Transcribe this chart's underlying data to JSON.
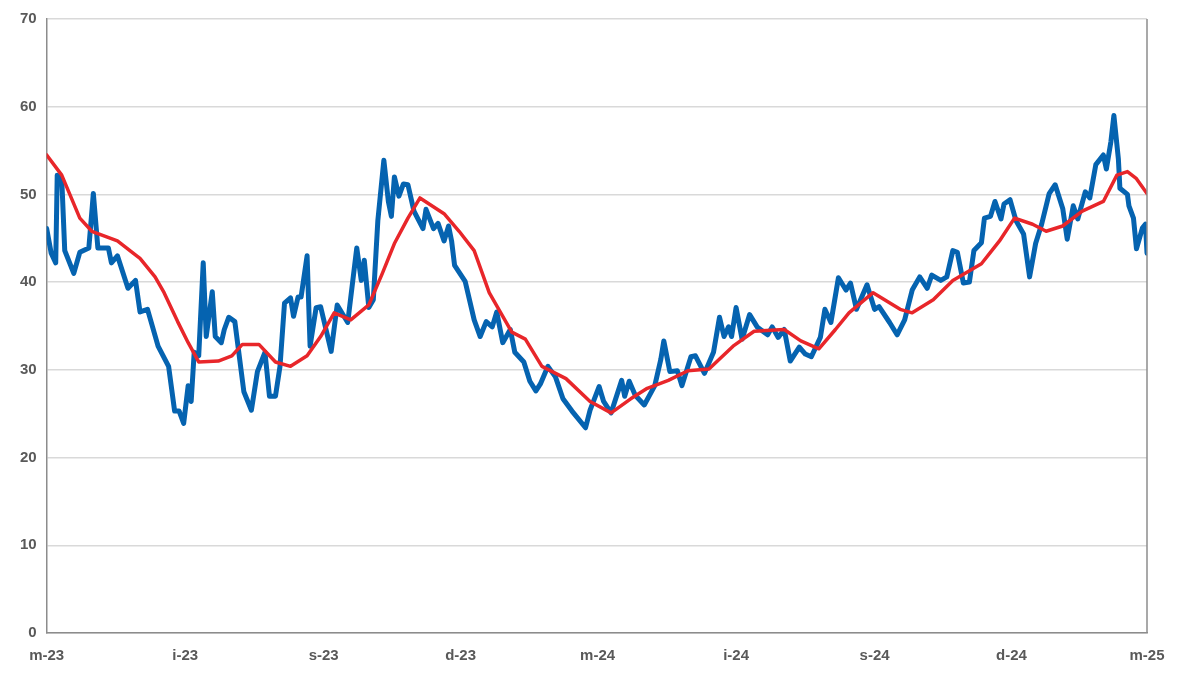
{
  "chart_data": {
    "type": "line",
    "xlim": [
      "2023-03-01",
      "2025-03-01"
    ],
    "xticks": [
      {
        "value": "2023-03-01",
        "label": "m-23"
      },
      {
        "value": "2023-06-01",
        "label": "i-23"
      },
      {
        "value": "2023-09-01",
        "label": "s-23"
      },
      {
        "value": "2023-12-01",
        "label": "d-23"
      },
      {
        "value": "2024-03-01",
        "label": "m-24"
      },
      {
        "value": "2024-06-01",
        "label": "i-24"
      },
      {
        "value": "2024-09-01",
        "label": "s-24"
      },
      {
        "value": "2024-12-01",
        "label": "d-24"
      },
      {
        "value": "2025-03-01",
        "label": "m-25"
      }
    ],
    "ylim": [
      0,
      70
    ],
    "yticks": [
      0,
      10,
      20,
      30,
      40,
      50,
      60,
      70
    ],
    "grid": "y",
    "marker": "none",
    "line_style": "solid",
    "series": [
      {
        "color": "#e8262a",
        "x": [
          "2023-03-01",
          "2023-03-11",
          "2023-03-23",
          "2023-03-31",
          "2023-04-17",
          "2023-05-02",
          "2023-05-12",
          "2023-05-18",
          "2023-05-27",
          "2023-06-03",
          "2023-06-10",
          "2023-06-23",
          "2023-07-02",
          "2023-07-09",
          "2023-07-20",
          "2023-07-31",
          "2023-08-10",
          "2023-08-21",
          "2023-08-30",
          "2023-09-08",
          "2023-09-19",
          "2023-10-01",
          "2023-10-10",
          "2023-10-18",
          "2023-10-27",
          "2023-11-04",
          "2023-11-20",
          "2023-11-30",
          "2023-12-10",
          "2023-12-20",
          "2024-01-04",
          "2024-01-13",
          "2024-01-24",
          "2024-02-09",
          "2024-02-25",
          "2024-03-10",
          "2024-03-23",
          "2024-04-03",
          "2024-04-17",
          "2024-04-30",
          "2024-05-14",
          "2024-05-30",
          "2024-06-13",
          "2024-07-03",
          "2024-07-14",
          "2024-07-26",
          "2024-08-06",
          "2024-08-15",
          "2024-08-31",
          "2024-09-18",
          "2024-09-26",
          "2024-10-10",
          "2024-10-23",
          "2024-11-11",
          "2024-11-23",
          "2024-12-03",
          "2024-12-15",
          "2024-12-24",
          "2025-01-04",
          "2025-01-17",
          "2025-01-31",
          "2025-02-09",
          "2025-02-16",
          "2025-02-22",
          "2025-03-01"
        ],
        "values": [
          54.5,
          52.2,
          47.3,
          45.8,
          44.7,
          42.7,
          40.6,
          38.8,
          35.5,
          33.1,
          30.9,
          31.0,
          31.6,
          32.9,
          32.9,
          30.9,
          30.4,
          31.6,
          33.8,
          36.5,
          35.7,
          37.4,
          41.0,
          44.4,
          47.3,
          49.6,
          47.8,
          45.8,
          43.6,
          38.8,
          34.3,
          33.5,
          30.4,
          29.0,
          26.4,
          25.1,
          26.7,
          27.9,
          28.8,
          29.9,
          30.1,
          32.7,
          34.4,
          34.6,
          33.3,
          32.4,
          34.6,
          36.5,
          38.8,
          36.9,
          36.5,
          38.0,
          40.2,
          42.1,
          44.7,
          47.3,
          46.6,
          45.8,
          46.4,
          48.1,
          49.2,
          52.2,
          52.6,
          51.8,
          50.1
        ]
      },
      {
        "color": "#0563b0",
        "x": [
          "2023-03-01",
          "2023-03-04",
          "2023-03-07",
          "2023-03-08",
          "2023-03-11",
          "2023-03-13",
          "2023-03-19",
          "2023-03-23",
          "2023-03-29",
          "2023-04-01",
          "2023-04-04",
          "2023-04-11",
          "2023-04-13",
          "2023-04-17",
          "2023-04-24",
          "2023-04-29",
          "2023-05-02",
          "2023-05-07",
          "2023-05-14",
          "2023-05-21",
          "2023-05-25",
          "2023-05-28",
          "2023-05-31",
          "2023-06-03",
          "2023-06-05",
          "2023-06-07",
          "2023-06-10",
          "2023-06-13",
          "2023-06-15",
          "2023-06-19",
          "2023-06-21",
          "2023-06-25",
          "2023-06-27",
          "2023-06-30",
          "2023-07-04",
          "2023-07-10",
          "2023-07-15",
          "2023-07-19",
          "2023-07-24",
          "2023-07-27",
          "2023-07-31",
          "2023-08-03",
          "2023-08-06",
          "2023-08-10",
          "2023-08-12",
          "2023-08-15",
          "2023-08-17",
          "2023-08-21",
          "2023-08-23",
          "2023-08-27",
          "2023-08-30",
          "2023-09-06",
          "2023-09-10",
          "2023-09-17",
          "2023-09-23",
          "2023-09-26",
          "2023-09-28",
          "2023-10-01",
          "2023-10-04",
          "2023-10-07",
          "2023-10-11",
          "2023-10-14",
          "2023-10-16",
          "2023-10-18",
          "2023-10-21",
          "2023-10-24",
          "2023-10-27",
          "2023-10-31",
          "2023-11-06",
          "2023-11-08",
          "2023-11-13",
          "2023-11-16",
          "2023-11-20",
          "2023-11-23",
          "2023-11-25",
          "2023-11-27",
          "2023-12-04",
          "2023-12-10",
          "2023-12-14",
          "2023-12-18",
          "2023-12-22",
          "2023-12-25",
          "2023-12-29",
          "2024-01-03",
          "2024-01-06",
          "2024-01-12",
          "2024-01-16",
          "2024-01-20",
          "2024-01-23",
          "2024-01-28",
          "2024-02-02",
          "2024-02-07",
          "2024-02-13",
          "2024-02-22",
          "2024-02-25",
          "2024-03-02",
          "2024-03-05",
          "2024-03-10",
          "2024-03-17",
          "2024-03-19",
          "2024-03-22",
          "2024-03-26",
          "2024-04-01",
          "2024-04-08",
          "2024-04-12",
          "2024-04-14",
          "2024-04-18",
          "2024-04-23",
          "2024-04-26",
          "2024-05-02",
          "2024-05-05",
          "2024-05-11",
          "2024-05-17",
          "2024-05-21",
          "2024-05-24",
          "2024-05-27",
          "2024-05-29",
          "2024-06-01",
          "2024-06-05",
          "2024-06-10",
          "2024-06-15",
          "2024-06-22",
          "2024-06-25",
          "2024-06-29",
          "2024-07-03",
          "2024-07-07",
          "2024-07-13",
          "2024-07-17",
          "2024-07-21",
          "2024-07-27",
          "2024-07-30",
          "2024-08-03",
          "2024-08-08",
          "2024-08-13",
          "2024-08-16",
          "2024-08-20",
          "2024-08-27",
          "2024-09-01",
          "2024-09-04",
          "2024-09-11",
          "2024-09-16",
          "2024-09-21",
          "2024-09-26",
          "2024-10-01",
          "2024-10-06",
          "2024-10-09",
          "2024-10-15",
          "2024-10-19",
          "2024-10-23",
          "2024-10-26",
          "2024-10-30",
          "2024-11-03",
          "2024-11-06",
          "2024-11-11",
          "2024-11-13",
          "2024-11-17",
          "2024-11-20",
          "2024-11-24",
          "2024-11-26",
          "2024-11-30",
          "2024-12-04",
          "2024-12-09",
          "2024-12-13",
          "2024-12-17",
          "2024-12-21",
          "2024-12-26",
          "2024-12-30",
          "2025-01-04",
          "2025-01-07",
          "2025-01-11",
          "2025-01-14",
          "2025-01-19",
          "2025-01-22",
          "2025-01-26",
          "2025-01-31",
          "2025-02-02",
          "2025-02-05",
          "2025-02-07",
          "2025-02-10",
          "2025-02-11",
          "2025-02-16",
          "2025-02-17",
          "2025-02-20",
          "2025-02-22",
          "2025-02-26",
          "2025-02-28",
          "2025-03-01"
        ],
        "values": [
          46.1,
          43.3,
          42.2,
          52.2,
          51.8,
          43.6,
          41.0,
          43.4,
          43.9,
          50.1,
          43.9,
          43.9,
          42.2,
          43.0,
          39.3,
          40.2,
          36.6,
          36.9,
          32.7,
          30.4,
          25.3,
          25.3,
          23.9,
          28.2,
          26.4,
          32.0,
          31.6,
          42.2,
          33.8,
          38.9,
          33.8,
          33.1,
          34.6,
          36.0,
          35.5,
          27.5,
          25.4,
          29.8,
          32.0,
          27.0,
          27.0,
          30.4,
          37.6,
          38.2,
          36.1,
          38.3,
          38.3,
          43.0,
          32.7,
          37.1,
          37.2,
          32.1,
          37.4,
          35.4,
          43.9,
          40.2,
          42.5,
          37.1,
          38.0,
          47.0,
          53.9,
          49.2,
          47.5,
          52.0,
          49.8,
          51.2,
          51.1,
          48.1,
          46.1,
          48.3,
          46.1,
          46.7,
          44.7,
          46.4,
          44.7,
          41.9,
          40.1,
          35.7,
          33.8,
          35.5,
          34.9,
          36.6,
          33.1,
          34.6,
          32.0,
          30.9,
          28.7,
          27.6,
          28.4,
          30.4,
          29.2,
          26.7,
          25.3,
          23.4,
          25.4,
          28.1,
          26.4,
          25.1,
          28.8,
          27.0,
          28.7,
          27.1,
          26.0,
          28.2,
          31.2,
          33.3,
          29.8,
          29.9,
          28.2,
          31.5,
          31.6,
          29.6,
          32.0,
          36.0,
          33.8,
          34.9,
          33.8,
          37.1,
          33.5,
          36.3,
          34.9,
          34.0,
          34.9,
          33.7,
          34.6,
          31.0,
          32.6,
          31.8,
          31.5,
          33.7,
          36.9,
          35.4,
          40.5,
          39.1,
          39.9,
          36.9,
          39.7,
          36.9,
          37.2,
          35.4,
          34.0,
          35.7,
          39.1,
          40.6,
          39.3,
          40.8,
          40.2,
          40.6,
          43.6,
          43.4,
          39.9,
          40.0,
          43.6,
          44.5,
          47.3,
          47.5,
          49.2,
          47.2,
          48.9,
          49.4,
          47.0,
          45.5,
          40.6,
          44.4,
          46.6,
          50.1,
          51.1,
          48.4,
          44.9,
          48.7,
          47.2,
          50.3,
          49.6,
          53.4,
          54.5,
          52.9,
          56.0,
          59.0,
          54.0,
          50.7,
          50.0,
          48.7,
          47.3,
          43.8,
          46.2,
          46.6,
          43.3
        ]
      }
    ]
  }
}
